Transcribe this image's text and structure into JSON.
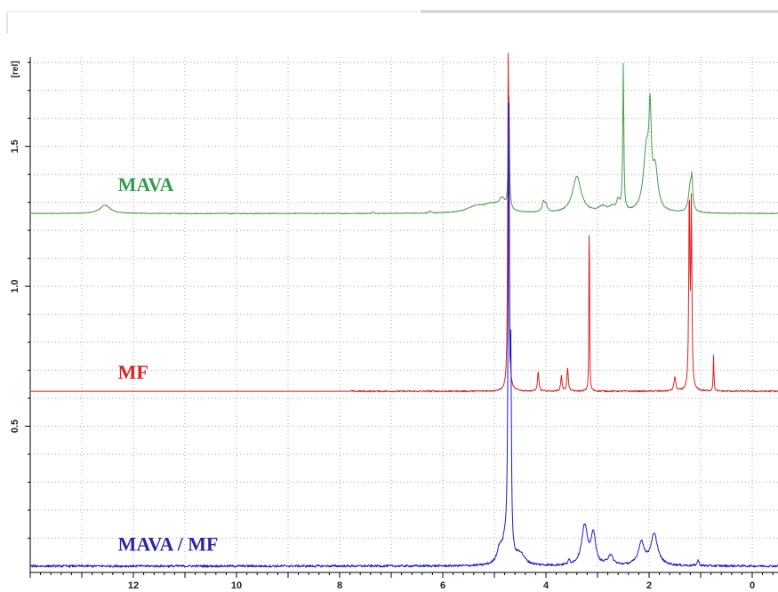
{
  "chart_data": {
    "type": "line",
    "title": "",
    "xlabel": "",
    "ylabel": "",
    "y_unit_label": "[rel]",
    "xlim": [
      14.0,
      -0.5
    ],
    "ylim": [
      -0.01,
      1.82
    ],
    "x_reversed": true,
    "grid": true,
    "x_ticks": [
      12,
      10,
      8,
      6,
      4,
      2,
      0
    ],
    "x_tick_labels": [
      "12",
      "10",
      "8",
      "6",
      "4",
      "2",
      "0"
    ],
    "y_ticks": [
      0.5,
      1.0,
      1.5
    ],
    "y_tick_labels": [
      "0.5",
      "1.0",
      "1.5"
    ],
    "series": [
      {
        "name": "MAVA",
        "color": "#4a9a4a",
        "label_color": "#2e9e4b",
        "label_x": 12.3,
        "label_y": 1.34,
        "baseline": 1.26,
        "noise": 0.0015,
        "peaks": [
          {
            "x": 12.55,
            "h": 0.03,
            "w": 0.12
          },
          {
            "x": 7.35,
            "h": 0.004,
            "w": 0.02
          },
          {
            "x": 6.25,
            "h": 0.006,
            "w": 0.02
          },
          {
            "x": 5.35,
            "h": 0.022,
            "w": 0.22
          },
          {
            "x": 5.05,
            "h": 0.025,
            "w": 0.18
          },
          {
            "x": 4.85,
            "h": 0.04,
            "w": 0.08
          },
          {
            "x": 4.72,
            "h": 0.45,
            "w": 0.012
          },
          {
            "x": 4.05,
            "h": 0.035,
            "w": 0.03
          },
          {
            "x": 4.0,
            "h": 0.025,
            "w": 0.03
          },
          {
            "x": 3.4,
            "h": 0.13,
            "w": 0.1
          },
          {
            "x": 2.9,
            "h": 0.02,
            "w": 0.1
          },
          {
            "x": 2.72,
            "h": 0.015,
            "w": 0.06
          },
          {
            "x": 2.6,
            "h": 0.04,
            "w": 0.04
          },
          {
            "x": 2.5,
            "h": 0.52,
            "w": 0.012
          },
          {
            "x": 2.05,
            "h": 0.22,
            "w": 0.07
          },
          {
            "x": 1.98,
            "h": 0.28,
            "w": 0.025
          },
          {
            "x": 1.88,
            "h": 0.14,
            "w": 0.06
          },
          {
            "x": 1.2,
            "h": 0.1,
            "w": 0.04
          },
          {
            "x": 1.17,
            "h": 0.08,
            "w": 0.015
          }
        ]
      },
      {
        "name": "MF",
        "color": "#e02020",
        "label_color": "#e02020",
        "label_x": 12.3,
        "label_y": 0.67,
        "baseline": 0.625,
        "noise": 0.0025,
        "noise_x_max": 7.8,
        "peaks": [
          {
            "x": 4.73,
            "h": 1.3,
            "w": 0.012
          },
          {
            "x": 4.15,
            "h": 0.07,
            "w": 0.015
          },
          {
            "x": 3.7,
            "h": 0.055,
            "w": 0.015
          },
          {
            "x": 3.58,
            "h": 0.085,
            "w": 0.015
          },
          {
            "x": 3.16,
            "h": 0.78,
            "w": 0.006
          },
          {
            "x": 1.5,
            "h": 0.05,
            "w": 0.02
          },
          {
            "x": 1.22,
            "h": 0.7,
            "w": 0.012
          },
          {
            "x": 1.18,
            "h": 0.65,
            "w": 0.012
          },
          {
            "x": 0.75,
            "h": 0.13,
            "w": 0.008
          }
        ]
      },
      {
        "name": "MAVA / MF",
        "color": "#1a1acc",
        "label_color": "#2828a8",
        "label_x": 12.3,
        "label_y": 0.055,
        "baseline": 0.0,
        "noise": 0.004,
        "peaks": [
          {
            "x": 4.9,
            "h": 0.05,
            "w": 0.06
          },
          {
            "x": 4.8,
            "h": 0.06,
            "w": 0.06
          },
          {
            "x": 4.72,
            "h": 1.7,
            "w": 0.015
          },
          {
            "x": 4.68,
            "h": 0.6,
            "w": 0.012
          },
          {
            "x": 4.5,
            "h": 0.04,
            "w": 0.1
          },
          {
            "x": 3.55,
            "h": 0.015,
            "w": 0.02
          },
          {
            "x": 3.25,
            "h": 0.14,
            "w": 0.07
          },
          {
            "x": 3.08,
            "h": 0.11,
            "w": 0.05
          },
          {
            "x": 2.75,
            "h": 0.035,
            "w": 0.06
          },
          {
            "x": 2.15,
            "h": 0.08,
            "w": 0.07
          },
          {
            "x": 1.9,
            "h": 0.11,
            "w": 0.08
          },
          {
            "x": 1.05,
            "h": 0.02,
            "w": 0.02
          }
        ]
      }
    ]
  }
}
